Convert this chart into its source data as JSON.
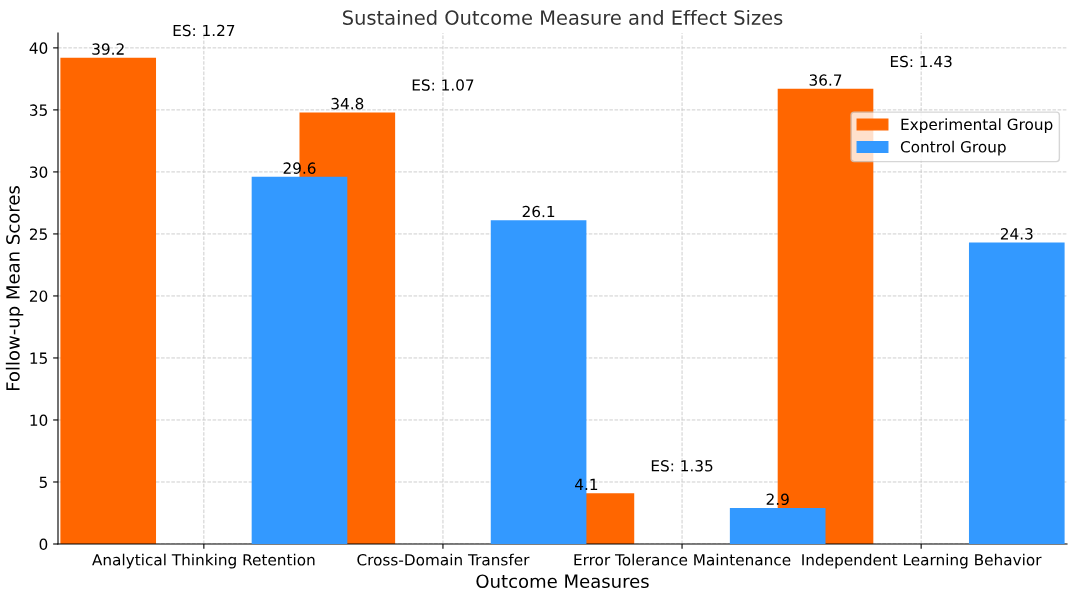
{
  "chart_data": {
    "type": "bar",
    "title": "Sustained Outcome Measure and Effect Sizes",
    "xlabel": "Outcome Measures",
    "ylabel": "Follow-up Mean Scores",
    "categories": [
      "Analytical Thinking Retention",
      "Cross-Domain Transfer",
      "Error Tolerance Maintenance",
      "Independent Learning Behavior"
    ],
    "series": [
      {
        "name": "Experimental Group",
        "color": "#ff6600",
        "values": [
          39.2,
          34.8,
          4.1,
          36.7
        ]
      },
      {
        "name": "Control Group",
        "color": "#3399ff",
        "values": [
          29.6,
          26.1,
          2.9,
          24.3
        ]
      }
    ],
    "annotations": [
      "ES: 1.27",
      "ES: 1.07",
      "ES: 1.35",
      "ES: 1.43"
    ],
    "ylim": [
      0,
      41.2
    ],
    "yticks": [
      0,
      5,
      10,
      15,
      20,
      25,
      30,
      35,
      40
    ],
    "data_labels": true,
    "grid": true,
    "legend": "top right"
  }
}
